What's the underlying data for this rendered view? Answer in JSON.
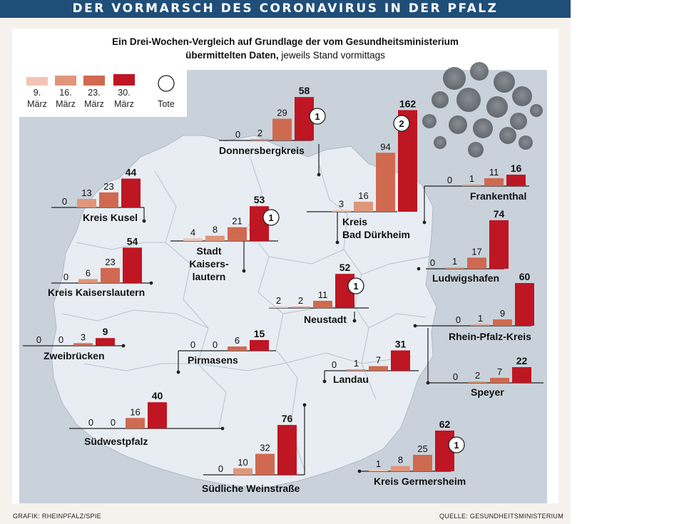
{
  "banner": {
    "title": "DER VORMARSCH DES CORONAVIRUS IN DER PFALZ"
  },
  "subtitle": {
    "line1": "Ein Drei-Wochen-Vergleich auf Grundlage der vom  Gesundheitsministerium",
    "line2_bold": "übermittelten Daten,",
    "line2_regular": " jeweils Stand vormittags"
  },
  "footer": {
    "left": "GRAFIK: RHEINPFALZ/SPIE",
    "right": "QUELLE: GESUNDHEITSMINISTERIUM"
  },
  "colors": {
    "mar9": "#f3c4b4",
    "mar16": "#e09679",
    "mar23": "#cf6a50",
    "mar30": "#be1622",
    "map_bg": "#c9d2db",
    "region": "#e8edf3",
    "banner": "#1f4e79"
  },
  "chart_data": {
    "type": "bar",
    "title": "DER VORMARSCH DES CORONAVIRUS IN DER PFALZ",
    "subtitle": "Ein Drei-Wochen-Vergleich auf Grundlage der vom Gesundheitsministerium übermittelten Daten, jeweils Stand vormittags",
    "legend": {
      "placement": "top-left",
      "items": [
        {
          "line1": "9.",
          "line2": "März"
        },
        {
          "line1": "16.",
          "line2": "März"
        },
        {
          "line1": "23.",
          "line2": "März"
        },
        {
          "line1": "30.",
          "line2": "März"
        }
      ],
      "deaths_label": "Tote"
    },
    "series_dates": [
      "9. März",
      "16. März",
      "23. März",
      "30. März"
    ],
    "regions": [
      {
        "name_lines": [
          "Donnersbergkreis"
        ],
        "values": [
          0,
          2,
          29,
          58
        ],
        "deaths": 1
      },
      {
        "name_lines": [
          "Kreis",
          "Bad Dürkheim"
        ],
        "values": [
          3,
          16,
          94,
          162
        ],
        "deaths": 2
      },
      {
        "name_lines": [
          "Frankenthal"
        ],
        "values": [
          0,
          1,
          11,
          16
        ],
        "deaths": null
      },
      {
        "name_lines": [
          "Kreis Kusel"
        ],
        "values": [
          0,
          13,
          23,
          44
        ],
        "deaths": null
      },
      {
        "name_lines": [
          "Stadt",
          "Kaisers-",
          "lautern"
        ],
        "values": [
          4,
          8,
          21,
          53
        ],
        "deaths": 1
      },
      {
        "name_lines": [
          "Ludwigshafen"
        ],
        "values": [
          0,
          1,
          17,
          74
        ],
        "deaths": null
      },
      {
        "name_lines": [
          "Kreis Kaiserslautern"
        ],
        "values": [
          0,
          6,
          23,
          54
        ],
        "deaths": null
      },
      {
        "name_lines": [
          "Neustadt"
        ],
        "values": [
          2,
          2,
          11,
          52
        ],
        "deaths": 1
      },
      {
        "name_lines": [
          "Rhein-Pfalz-Kreis"
        ],
        "values": [
          0,
          1,
          9,
          60
        ],
        "deaths": null
      },
      {
        "name_lines": [
          "Zweibrücken"
        ],
        "values": [
          0,
          0,
          3,
          9
        ],
        "deaths": null
      },
      {
        "name_lines": [
          "Pirmasens"
        ],
        "values": [
          0,
          0,
          6,
          15
        ],
        "deaths": null
      },
      {
        "name_lines": [
          "Landau"
        ],
        "values": [
          0,
          1,
          7,
          31
        ],
        "deaths": null
      },
      {
        "name_lines": [
          "Speyer"
        ],
        "values": [
          0,
          2,
          7,
          22
        ],
        "deaths": null
      },
      {
        "name_lines": [
          "Südwestpfalz"
        ],
        "values": [
          0,
          0,
          16,
          40
        ],
        "deaths": null
      },
      {
        "name_lines": [
          "Südliche Weinstraße"
        ],
        "values": [
          0,
          10,
          32,
          76
        ],
        "deaths": null
      },
      {
        "name_lines": [
          "Kreis Germersheim"
        ],
        "values": [
          1,
          8,
          25,
          62
        ],
        "deaths": 1
      }
    ]
  }
}
